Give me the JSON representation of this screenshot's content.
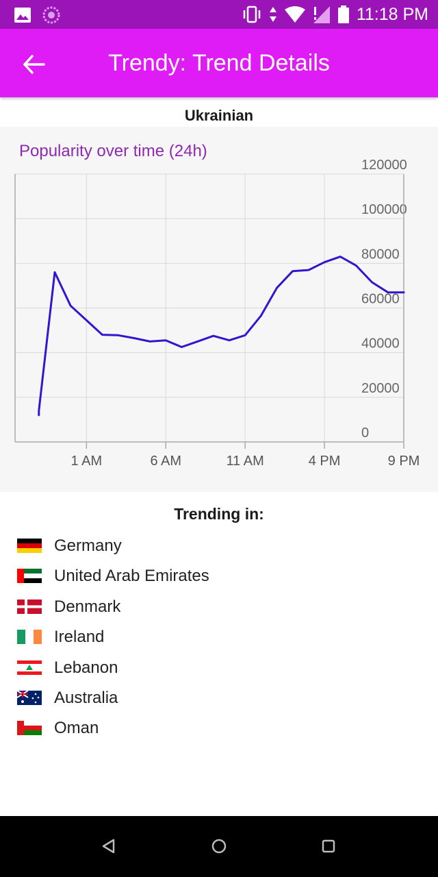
{
  "status_bar": {
    "time": "11:18 PM",
    "icons_left": [
      "image-icon",
      "loading-icon"
    ],
    "icons_right": [
      "vibrate-icon",
      "data-arrows-icon",
      "wifi-icon",
      "signal-icon",
      "battery-icon"
    ]
  },
  "app_bar": {
    "title": "Trendy: Trend Details",
    "back_icon": "arrow-left-icon",
    "color": "#e01cf6"
  },
  "trend": {
    "name": "Ukrainian"
  },
  "chart": {
    "title": "Popularity over time (24h)",
    "line_color": "#3315cf"
  },
  "chart_data": {
    "type": "line",
    "title": "Popularity over time (24h)",
    "xlabel": "",
    "ylabel": "",
    "x_tick_labels": [
      "1 AM",
      "6 AM",
      "11 AM",
      "4 PM",
      "9 PM"
    ],
    "y_tick_labels": [
      "0",
      "20000",
      "40000",
      "60000",
      "80000",
      "100000",
      "120000"
    ],
    "ylim": [
      0,
      120000
    ],
    "xlim_hours": [
      -3.5,
      21
    ],
    "grid": true,
    "series": [
      {
        "x_hours": [
          -2.0,
          -2.0,
          -1.0,
          0.0,
          1.0,
          2.0,
          3.0,
          4.0,
          5.0,
          6.0,
          7.0,
          8.0,
          9.0,
          10.0,
          11.0,
          12.0,
          13.0,
          14.0,
          15.0,
          16.0,
          17.0,
          18.0,
          19.0,
          20.0,
          21.0
        ],
        "values": [
          12000,
          14000,
          76000,
          61000,
          54500,
          48000,
          47800,
          46500,
          45000,
          45500,
          42500,
          45000,
          47500,
          45500,
          47800,
          56500,
          69000,
          76500,
          77000,
          80500,
          83000,
          79000,
          71500,
          67000,
          67000
        ]
      }
    ]
  },
  "trending_in": {
    "title": "Trending in:",
    "countries": [
      {
        "name": "Germany",
        "flag_icon": "germany-flag-icon"
      },
      {
        "name": "United Arab Emirates",
        "flag_icon": "uae-flag-icon"
      },
      {
        "name": "Denmark",
        "flag_icon": "denmark-flag-icon"
      },
      {
        "name": "Ireland",
        "flag_icon": "ireland-flag-icon"
      },
      {
        "name": "Lebanon",
        "flag_icon": "lebanon-flag-icon"
      },
      {
        "name": "Australia",
        "flag_icon": "australia-flag-icon"
      },
      {
        "name": "Oman",
        "flag_icon": "oman-flag-icon"
      }
    ]
  },
  "nav_bar": {
    "buttons": [
      "back-triangle-icon",
      "home-circle-icon",
      "recents-square-icon"
    ]
  }
}
